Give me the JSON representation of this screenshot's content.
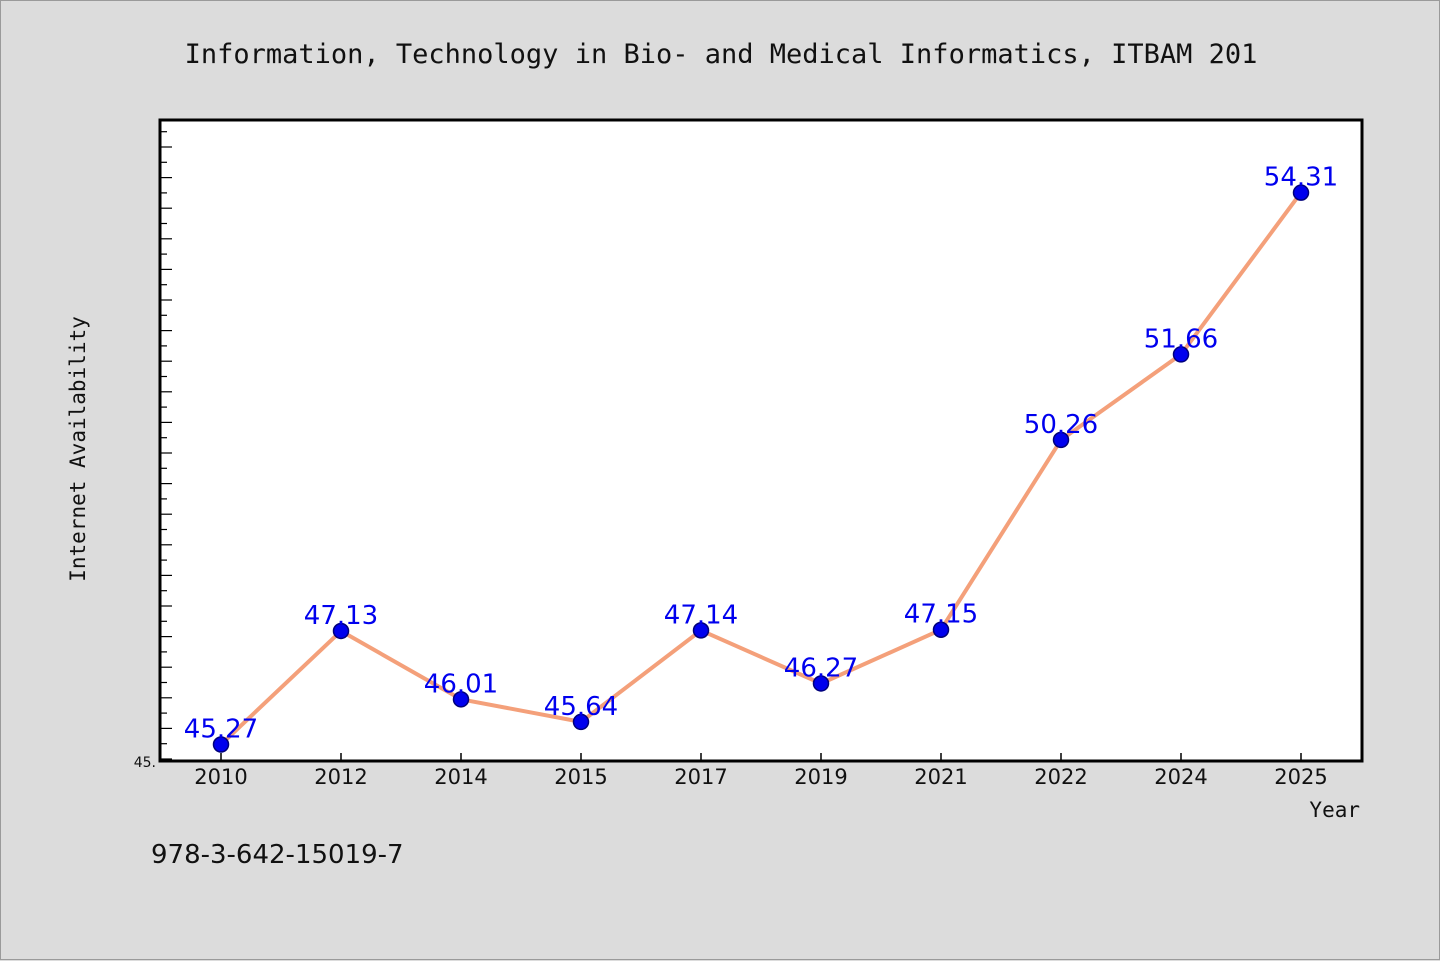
{
  "colors": {
    "background": "#dcdcdc",
    "plot_background": "#ffffff",
    "line": "#f4a07a",
    "marker_fill": "#0000ee",
    "marker_stroke": "#00007a",
    "value_label": "#0000ee"
  },
  "footer": {
    "isbn": "978-3-642-15019-7"
  },
  "chart_data": {
    "type": "line",
    "title": "Information, Technology in Bio- and Medical Informatics, ITBAM 201",
    "xlabel": "Year",
    "ylabel": "Internet Availability",
    "y_axis_min_label": "45.",
    "categories": [
      "2010",
      "2012",
      "2014",
      "2015",
      "2017",
      "2019",
      "2021",
      "2022",
      "2024",
      "2025"
    ],
    "series": [
      {
        "values": [
          45.27,
          47.13,
          46.01,
          45.64,
          47.14,
          46.27,
          47.15,
          50.26,
          51.66,
          54.31
        ],
        "labels": [
          "45.27",
          "47.13",
          "46.01",
          "45.64",
          "47.14",
          "46.27",
          "47.15",
          "50.26",
          "51.66",
          "54.31"
        ]
      }
    ],
    "ylim": [
      45.0,
      55.5
    ],
    "grid": false,
    "legend": "none"
  }
}
